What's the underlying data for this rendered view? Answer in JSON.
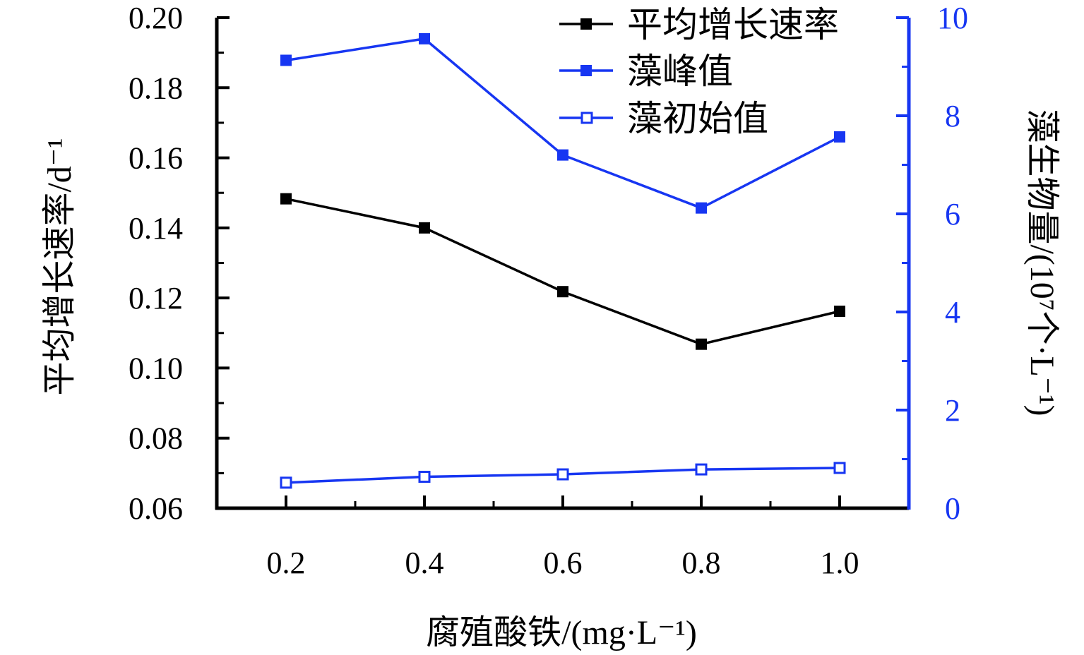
{
  "colors": {
    "black_series": "#000000",
    "blue_series": "#1736f2",
    "right_axis": "#1736f2"
  },
  "chart_data": {
    "type": "line",
    "x": [
      0.2,
      0.4,
      0.6,
      0.8,
      1.0
    ],
    "x_tick_labels": [
      "0.2",
      "0.4",
      "0.6",
      "0.8",
      "1.0"
    ],
    "xlabel": "腐殖酸铁/(mg·L⁻¹)",
    "xlim": [
      0.1,
      1.1
    ],
    "y_left": {
      "label": "平均增长速率/d⁻¹",
      "lim": [
        0.06,
        0.2
      ],
      "ticks": [
        "0.06",
        "0.08",
        "0.10",
        "0.12",
        "0.14",
        "0.16",
        "0.18",
        "0.20"
      ],
      "tick_values": [
        0.06,
        0.08,
        0.1,
        0.12,
        0.14,
        0.16,
        0.18,
        0.2
      ]
    },
    "y_right": {
      "label": "藻生物量/(10⁷个·L⁻¹)",
      "lim": [
        0,
        10
      ],
      "ticks": [
        "0",
        "2",
        "4",
        "6",
        "8",
        "10"
      ],
      "tick_values": [
        0,
        2,
        4,
        6,
        8,
        10
      ]
    },
    "legend_placement": "top-right",
    "series": [
      {
        "name": "平均增长速率",
        "axis": "left",
        "color": "#000000",
        "marker": "filled-square",
        "values": [
          0.1483,
          0.14,
          0.1218,
          0.1068,
          0.1162
        ]
      },
      {
        "name": "藻峰值",
        "axis": "right",
        "color": "#1736f2",
        "marker": "filled-square",
        "values": [
          9.13,
          9.57,
          7.2,
          6.12,
          7.57
        ]
      },
      {
        "name": "藻初始值",
        "axis": "right",
        "color": "#1736f2",
        "marker": "open-square",
        "values": [
          0.52,
          0.64,
          0.69,
          0.79,
          0.82
        ]
      }
    ]
  }
}
